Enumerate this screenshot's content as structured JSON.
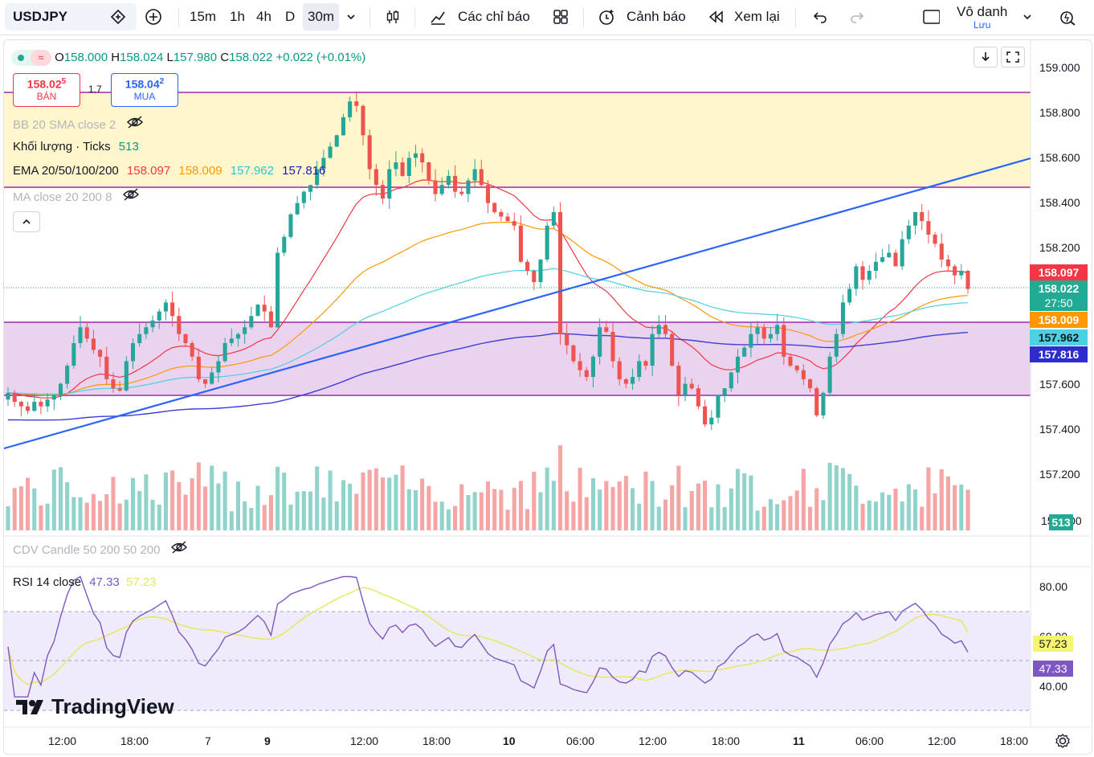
{
  "toolbar": {
    "symbol": "USDJPY",
    "timeframes": [
      "15m",
      "1h",
      "4h",
      "D",
      "30m"
    ],
    "active_timeframe": "30m",
    "indicators_label": "Các chỉ báo",
    "alerts_label": "Cảnh báo",
    "replay_label": "Xem lại",
    "layout_title": "Vô danh",
    "layout_subtitle": "Lưu"
  },
  "legend": {
    "ohlc": {
      "o_label": "O",
      "o": "158.000",
      "h_label": "H",
      "h": "158.024",
      "l_label": "L",
      "l": "157.980",
      "c_label": "C",
      "c": "158.022",
      "change": "+0.022 (+0.01%)"
    },
    "sell": {
      "price_main": "158.02",
      "price_sup": "5",
      "label": "BÁN"
    },
    "spread": "1.7",
    "buy": {
      "price_main": "158.04",
      "price_sup": "2",
      "label": "MUA"
    },
    "bb": "BB 20 SMA close 2",
    "volume": {
      "label": "Khối lượng · Ticks",
      "value": "513"
    },
    "ema": {
      "label": "EMA 20/50/100/200",
      "v20": "158.097",
      "v50": "158.009",
      "v100": "157.962",
      "v200": "157.816"
    },
    "ma": "MA close 20 200 8",
    "cdv": "CDV Candle 50 200 50 200",
    "rsi": {
      "label": "RSI 14 close",
      "value": "47.33",
      "ma": "57.23"
    }
  },
  "price_axis": [
    "159.000",
    "158.800",
    "158.600",
    "158.400",
    "158.200",
    "158.000",
    "157.800",
    "157.600",
    "157.400",
    "157.200"
  ],
  "price_axis_bottom": "158.000",
  "price_labels": {
    "ema20": "158.097",
    "last": "158.022",
    "countdown": "27:50",
    "ema50": "158.009",
    "ema100": "157.962",
    "ema200": "157.816",
    "volume": "513"
  },
  "rsi_axis": [
    "80.00",
    "60.00",
    "40.00"
  ],
  "rsi_labels": {
    "ma": "57.23",
    "rsi": "47.33"
  },
  "time_axis": [
    "12:00",
    "18:00",
    "7",
    "9",
    "12:00",
    "18:00",
    "10",
    "06:00",
    "12:00",
    "18:00",
    "11",
    "06:00",
    "12:00",
    "18:00"
  ],
  "watermark": "TradingView",
  "colors": {
    "up": "#26a69a",
    "down": "#ef5350",
    "ema20": "#f23645",
    "ema50": "#ff9800",
    "ema100": "#4dd0e1",
    "ema200": "#3d3dd6",
    "trend": "#2962ff",
    "zone_top": "#fff3c4",
    "zone_mid": "#e1bee7",
    "rsi": "#7e57c2",
    "rsi_ma": "#e6e65c"
  },
  "chart_data": {
    "type": "candlestick",
    "symbol": "USDJPY",
    "timeframe": "30m",
    "ylim": [
      157.15,
      159.05
    ],
    "closes": [
      157.56,
      157.52,
      157.5,
      157.48,
      157.52,
      157.5,
      157.53,
      157.55,
      157.6,
      157.68,
      157.78,
      157.85,
      157.8,
      157.75,
      157.72,
      157.62,
      157.58,
      157.57,
      157.7,
      157.78,
      157.82,
      157.85,
      157.88,
      157.92,
      157.96,
      157.9,
      157.82,
      157.78,
      157.72,
      157.62,
      157.6,
      157.65,
      157.7,
      157.78,
      157.8,
      157.82,
      157.85,
      157.9,
      157.95,
      157.92,
      157.85,
      158.18,
      158.25,
      158.35,
      158.4,
      158.45,
      158.48,
      158.55,
      158.6,
      158.65,
      158.7,
      158.78,
      158.85,
      158.83,
      158.7,
      158.55,
      158.48,
      158.42,
      158.55,
      158.58,
      158.52,
      158.6,
      158.62,
      158.58,
      158.5,
      158.44,
      158.48,
      158.52,
      158.45,
      158.44,
      158.5,
      158.55,
      158.48,
      158.4,
      158.36,
      158.34,
      158.32,
      158.3,
      158.14,
      158.1,
      158.05,
      158.15,
      158.3,
      158.36,
      157.82,
      157.77,
      157.7,
      157.66,
      157.63,
      157.72,
      157.85,
      157.83,
      157.7,
      157.62,
      157.6,
      157.63,
      157.7,
      157.68,
      157.82,
      157.86,
      157.82,
      157.68,
      157.55,
      157.6,
      157.58,
      157.5,
      157.42,
      157.45,
      157.55,
      157.58,
      157.65,
      157.72,
      157.76,
      157.82,
      157.85,
      157.8,
      157.82,
      157.86,
      157.72,
      157.68,
      157.66,
      157.62,
      157.58,
      157.46,
      157.56,
      157.72,
      157.82,
      157.96,
      158.02,
      158.12,
      158.06,
      158.1,
      158.14,
      158.16,
      158.18,
      158.12,
      158.24,
      158.3,
      158.36,
      158.32,
      158.26,
      158.22,
      158.15,
      158.12,
      158.08,
      158.1,
      158.02
    ],
    "rsi": {
      "range": [
        20,
        90
      ],
      "overbought": 70,
      "oversold": 30,
      "last_rsi": 47.33,
      "last_ma": 57.23
    }
  }
}
